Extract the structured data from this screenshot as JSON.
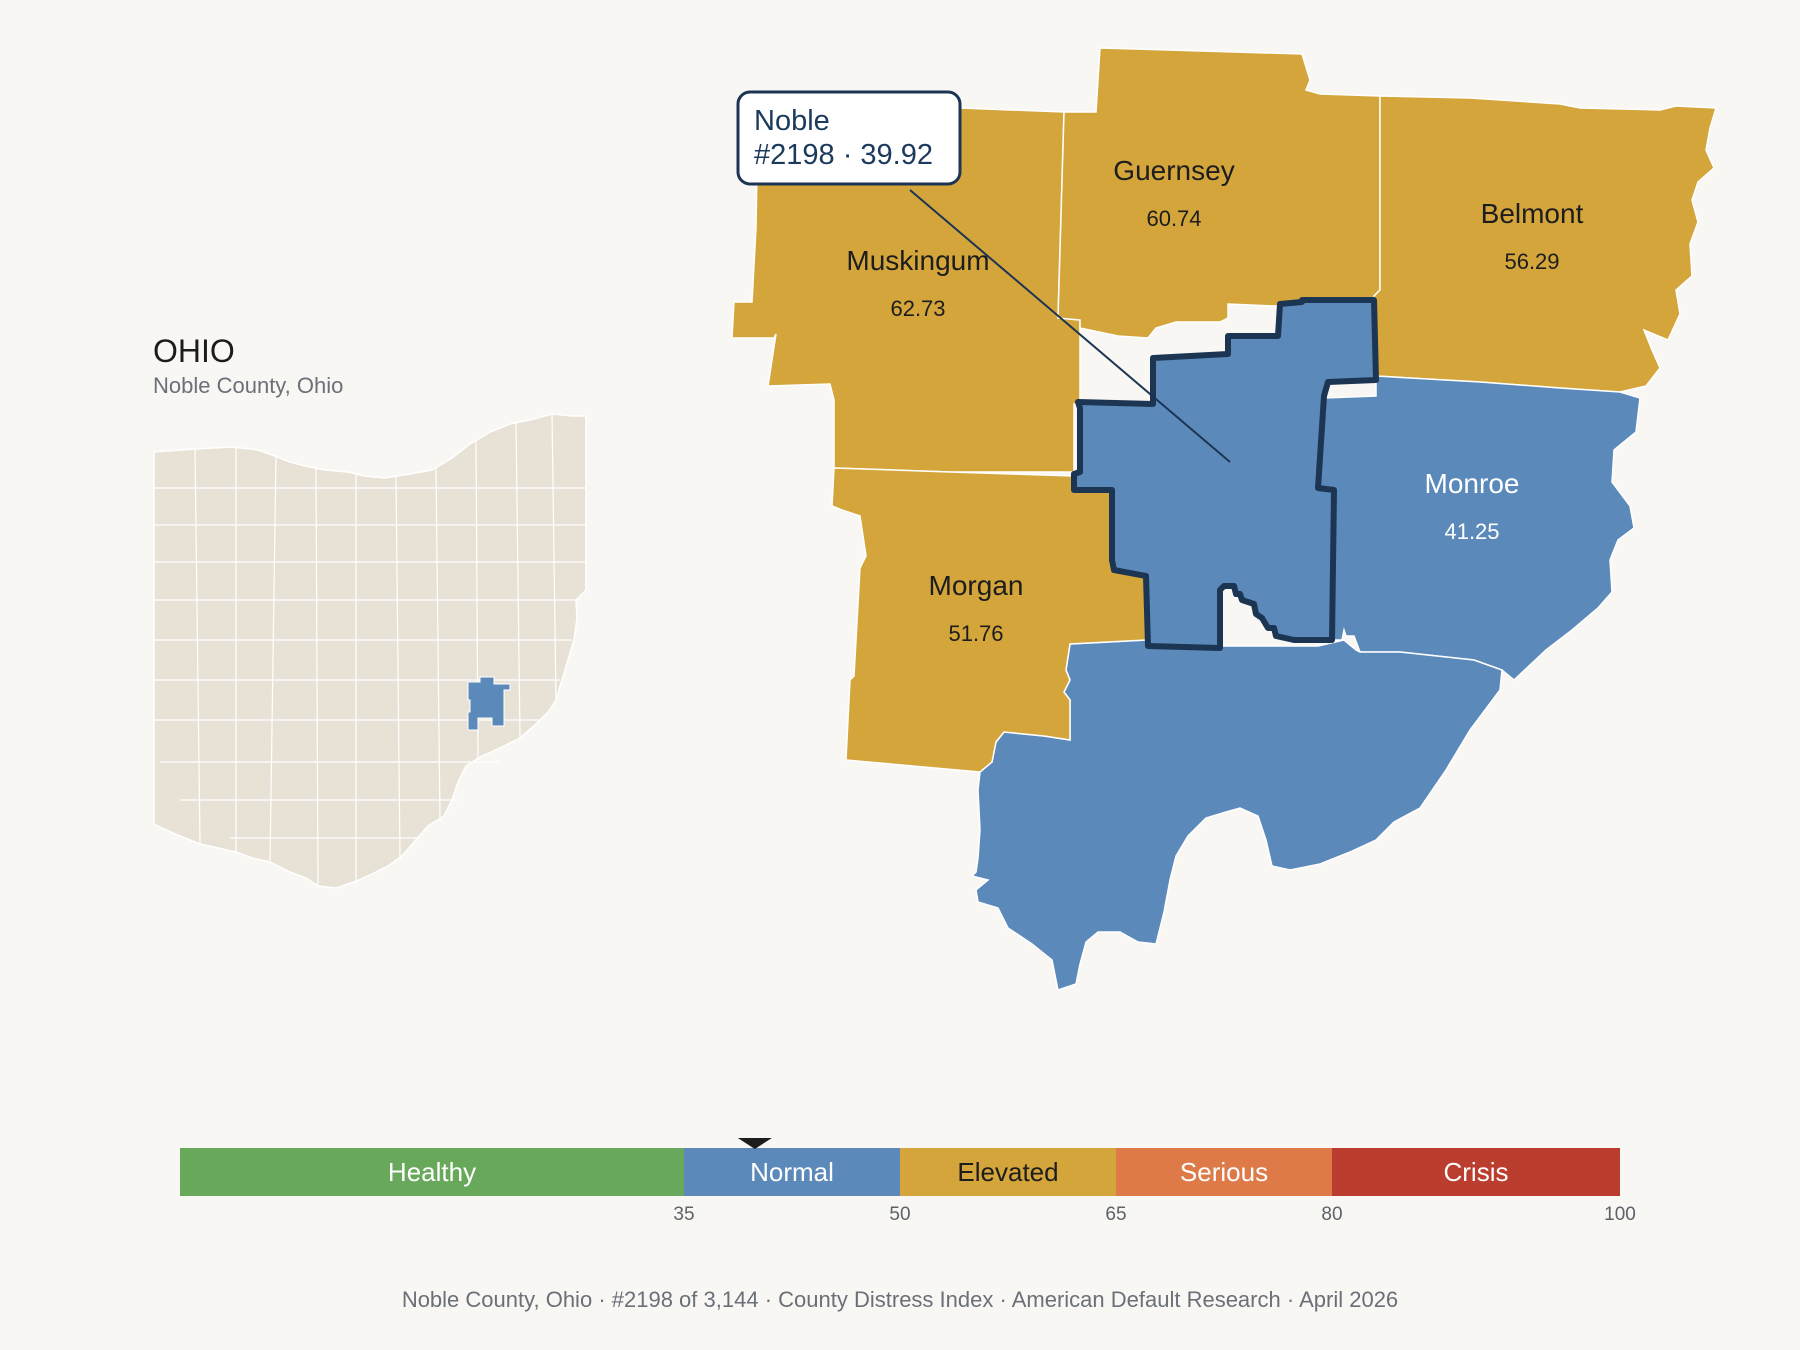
{
  "inset": {
    "state_title": "OHIO",
    "subtitle": "Noble County, Ohio"
  },
  "counties": [
    {
      "key": "muskingum",
      "name": "Muskingum",
      "value": "62.73",
      "category": "Elevated"
    },
    {
      "key": "guernsey",
      "name": "Guernsey",
      "value": "60.74",
      "category": "Elevated"
    },
    {
      "key": "belmont",
      "name": "Belmont",
      "value": "56.29",
      "category": "Elevated"
    },
    {
      "key": "monroe",
      "name": "Monroe",
      "value": "41.25",
      "category": "Normal"
    },
    {
      "key": "morgan",
      "name": "Morgan",
      "value": "51.76",
      "category": "Elevated"
    },
    {
      "key": "washington",
      "name": "",
      "value": "",
      "category": "Normal"
    },
    {
      "key": "noble",
      "name": "Noble",
      "value": "39.92",
      "category": "Normal",
      "selected": true
    }
  ],
  "tooltip": {
    "line1": "Noble",
    "line2": "#2198 · 39.92"
  },
  "legend": {
    "marker_value": 39.92,
    "min": 0,
    "max": 100,
    "bands": [
      {
        "label": "Healthy",
        "from": 0,
        "to": 35,
        "color": "#68a85a"
      },
      {
        "label": "Normal",
        "from": 35,
        "to": 50,
        "color": "#5b8aba"
      },
      {
        "label": "Elevated",
        "from": 50,
        "to": 65,
        "color": "#d4a53b"
      },
      {
        "label": "Serious",
        "from": 65,
        "to": 80,
        "color": "#dd7a48"
      },
      {
        "label": "Crisis",
        "from": 80,
        "to": 100,
        "color": "#bb3d2d"
      }
    ],
    "ticks": [
      "35",
      "50",
      "65",
      "80",
      "100"
    ]
  },
  "colors": {
    "normal": "#5b8aba",
    "elevated": "#d4a53b",
    "selected_outline": "#1c3553",
    "inset_fill": "#e8e2d6",
    "background": "#f9f7f4"
  },
  "footer": {
    "county": "Noble County, Ohio",
    "rank": "#2198 of 3,144",
    "index_name": "County Distress Index",
    "source": "American Default Research",
    "date": "April 2026"
  }
}
